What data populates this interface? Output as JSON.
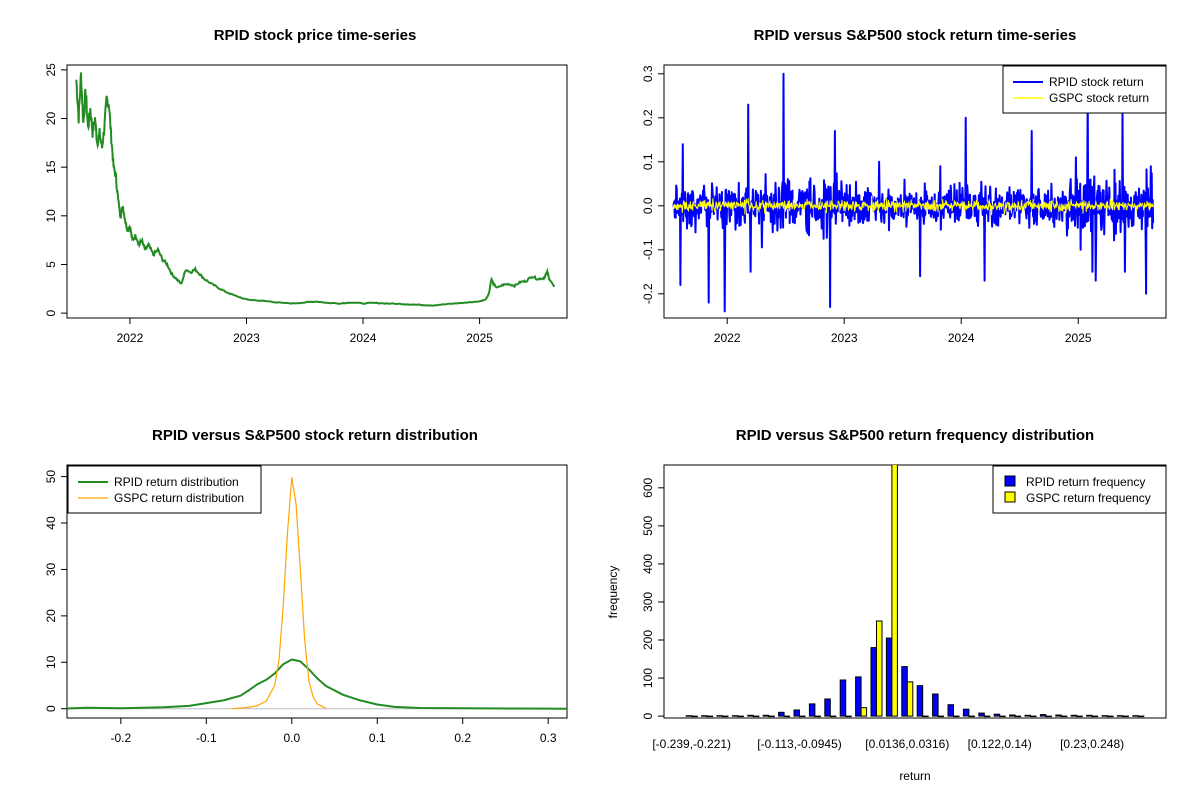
{
  "chart_data": [
    {
      "id": "price",
      "type": "line",
      "title": "RPID stock price time-series",
      "xlabel": "",
      "ylabel": "",
      "xlim": [
        2021.46,
        2025.75
      ],
      "ylim": [
        -0.5,
        25.5
      ],
      "x_ticks": [
        2022,
        2023,
        2024,
        2025
      ],
      "x_tick_labels": [
        "2022",
        "2023",
        "2024",
        "2025"
      ],
      "y_ticks": [
        0,
        5,
        10,
        15,
        20,
        25
      ],
      "y_tick_labels": [
        "0",
        "5",
        "10",
        "15",
        "20",
        "25"
      ],
      "color": "#228B22",
      "series": [
        {
          "name": "RPID",
          "x": [
            2021.54,
            2021.56,
            2021.58,
            2021.6,
            2021.62,
            2021.64,
            2021.66,
            2021.68,
            2021.7,
            2021.72,
            2021.74,
            2021.76,
            2021.78,
            2021.8,
            2021.82,
            2021.84,
            2021.86,
            2021.88,
            2021.9,
            2021.92,
            2021.94,
            2021.96,
            2021.98,
            2022.0,
            2022.02,
            2022.05,
            2022.08,
            2022.1,
            2022.13,
            2022.16,
            2022.2,
            2022.24,
            2022.28,
            2022.32,
            2022.36,
            2022.4,
            2022.44,
            2022.48,
            2022.52,
            2022.56,
            2022.6,
            2022.64,
            2022.7,
            2022.76,
            2022.82,
            2022.9,
            2023.0,
            2023.1,
            2023.2,
            2023.3,
            2023.4,
            2023.5,
            2023.6,
            2023.7,
            2023.8,
            2023.9,
            2024.0,
            2024.1,
            2024.2,
            2024.3,
            2024.4,
            2024.5,
            2024.6,
            2024.7,
            2024.8,
            2024.9,
            2025.0,
            2025.05,
            2025.08,
            2025.1,
            2025.12,
            2025.15,
            2025.2,
            2025.25,
            2025.3,
            2025.35,
            2025.4,
            2025.45,
            2025.5,
            2025.55,
            2025.58,
            2025.6,
            2025.64
          ],
          "values": [
            24,
            20,
            24.5,
            19.5,
            23,
            19,
            21,
            18.5,
            20,
            17.5,
            18.5,
            17,
            19,
            22,
            21.5,
            18,
            15,
            14,
            11.5,
            10,
            11,
            9.5,
            8.5,
            9,
            7.5,
            8,
            7,
            7.5,
            6.5,
            7,
            6,
            6.5,
            5.5,
            5,
            4,
            3.5,
            3,
            4.5,
            4.2,
            4.5,
            4,
            3.5,
            3,
            2.6,
            2.2,
            1.8,
            1.4,
            1.3,
            1.2,
            1.05,
            1.0,
            1.1,
            1.2,
            1.05,
            1.0,
            1.1,
            1.0,
            1.05,
            1.0,
            0.95,
            0.9,
            0.85,
            0.8,
            0.9,
            1.0,
            1.1,
            1.2,
            1.4,
            2.0,
            3.5,
            3.0,
            2.6,
            2.9,
            3.0,
            2.8,
            3.2,
            3.3,
            3.8,
            3.5,
            3.6,
            4.2,
            3.5,
            2.7
          ]
        }
      ]
    },
    {
      "id": "returns",
      "type": "line",
      "title": "RPID versus S&P500 stock return time-series",
      "xlabel": "",
      "ylabel": "",
      "xlim": [
        2021.46,
        2025.75
      ],
      "ylim": [
        -0.255,
        0.32
      ],
      "x_ticks": [
        2022,
        2023,
        2024,
        2025
      ],
      "x_tick_labels": [
        "2022",
        "2023",
        "2024",
        "2025"
      ],
      "y_ticks": [
        -0.2,
        -0.1,
        0.0,
        0.1,
        0.2,
        0.3
      ],
      "y_tick_labels": [
        "-0.2",
        "-0.1",
        "0.0",
        "0.1",
        "0.2",
        "0.3"
      ],
      "legend": {
        "position": "top-right",
        "entries": [
          "RPID stock return",
          "GSPC stock return"
        ]
      },
      "series": [
        {
          "name": "RPID stock return",
          "color": "#0000FF",
          "x_start": 2021.54,
          "x_end": 2025.64,
          "n": 1020,
          "sd": 0.048,
          "spikes": [
            [
              2021.6,
              -0.18
            ],
            [
              2021.62,
              0.14
            ],
            [
              2021.84,
              -0.22
            ],
            [
              2021.98,
              -0.24
            ],
            [
              2022.18,
              0.23
            ],
            [
              2022.2,
              -0.15
            ],
            [
              2022.48,
              0.3
            ],
            [
              2022.88,
              -0.23
            ],
            [
              2022.92,
              0.17
            ],
            [
              2023.3,
              0.1
            ],
            [
              2023.65,
              -0.16
            ],
            [
              2023.82,
              0.09
            ],
            [
              2024.04,
              0.2
            ],
            [
              2024.2,
              -0.17
            ],
            [
              2024.6,
              0.17
            ],
            [
              2024.98,
              0.11
            ],
            [
              2025.02,
              -0.1
            ],
            [
              2025.08,
              0.25
            ],
            [
              2025.12,
              -0.15
            ],
            [
              2025.15,
              -0.17
            ],
            [
              2025.38,
              0.22
            ],
            [
              2025.4,
              -0.15
            ],
            [
              2025.58,
              -0.2
            ],
            [
              2025.62,
              0.09
            ]
          ]
        },
        {
          "name": "GSPC stock return",
          "color": "#FFFF00",
          "x_start": 2021.54,
          "x_end": 2025.64,
          "n": 1020,
          "sd": 0.011,
          "spikes": []
        }
      ]
    },
    {
      "id": "density",
      "type": "line",
      "title": "RPID versus S&P500 stock return distribution",
      "xlabel": "",
      "ylabel": "",
      "xlim": [
        -0.263,
        0.322
      ],
      "ylim": [
        -2,
        52.5
      ],
      "x_ticks": [
        -0.2,
        -0.1,
        0.0,
        0.1,
        0.2,
        0.3
      ],
      "x_tick_labels": [
        "-0.2",
        "-0.1",
        "0.0",
        "0.1",
        "0.2",
        "0.3"
      ],
      "y_ticks": [
        0,
        10,
        20,
        30,
        40,
        50
      ],
      "y_tick_labels": [
        "0",
        "10",
        "20",
        "30",
        "40",
        "50"
      ],
      "legend": {
        "position": "top-left",
        "entries": [
          "RPID return distribution",
          "GSPC return distribution"
        ]
      },
      "series": [
        {
          "name": "RPID return distribution",
          "color": "#228B22",
          "x": [
            -0.263,
            -0.24,
            -0.2,
            -0.15,
            -0.12,
            -0.1,
            -0.08,
            -0.06,
            -0.05,
            -0.04,
            -0.03,
            -0.02,
            -0.01,
            0.0,
            0.01,
            0.02,
            0.03,
            0.04,
            0.06,
            0.08,
            0.1,
            0.12,
            0.15,
            0.2,
            0.25,
            0.3,
            0.322
          ],
          "values": [
            0.05,
            0.2,
            0.1,
            0.3,
            0.6,
            1.2,
            1.8,
            2.8,
            4.0,
            5.3,
            6.2,
            7.6,
            9.6,
            10.6,
            10.2,
            8.5,
            6.5,
            4.9,
            3.0,
            1.8,
            0.9,
            0.4,
            0.15,
            0.1,
            0.05,
            0.02,
            0.0
          ]
        },
        {
          "name": "GSPC return distribution",
          "color": "#FFA500",
          "x": [
            -0.07,
            -0.05,
            -0.04,
            -0.03,
            -0.02,
            -0.015,
            -0.01,
            -0.005,
            0.0,
            0.005,
            0.01,
            0.015,
            0.02,
            0.025,
            0.03,
            0.04
          ],
          "values": [
            0.0,
            0.3,
            0.7,
            1.6,
            5.0,
            10.5,
            22.0,
            38.0,
            49.8,
            44.0,
            30.0,
            15.0,
            6.0,
            2.5,
            1.0,
            0.1
          ]
        }
      ]
    },
    {
      "id": "histogram",
      "type": "bar",
      "title": "RPID versus S&P500 return frequency distribution",
      "xlabel": "return",
      "ylabel": "frequency",
      "ylim": [
        -5,
        660
      ],
      "y_ticks": [
        0,
        100,
        200,
        300,
        400,
        500,
        600
      ],
      "y_tick_labels": [
        "0",
        "100",
        "200",
        "300",
        "400",
        "500",
        "600"
      ],
      "category_labels": [
        "[-0.239,-0.221)",
        "[-0.113,-0.0945)",
        "[0.0136,0.0316)",
        "[0.122,0.14)",
        "[0.23,0.248)"
      ],
      "category_label_index": [
        0,
        7,
        14,
        20,
        26
      ],
      "n_categories": 30,
      "legend": {
        "position": "top-right",
        "entries": [
          "RPID return frequency",
          "GSPC return frequency"
        ]
      },
      "series": [
        {
          "name": "RPID return frequency",
          "color": "#0000FF",
          "values": [
            1,
            1,
            1,
            1,
            2,
            2,
            10,
            16,
            32,
            45,
            95,
            103,
            180,
            205,
            130,
            80,
            58,
            30,
            18,
            8,
            5,
            3,
            2,
            4,
            3,
            2,
            2,
            1,
            1,
            1
          ]
        },
        {
          "name": "GSPC return frequency",
          "color": "#FFFF00",
          "values": [
            0,
            0,
            0,
            0,
            0,
            0,
            0,
            0,
            0,
            0,
            0,
            22,
            250,
            680,
            90,
            0,
            0,
            0,
            0,
            0,
            0,
            0,
            0,
            0,
            0,
            0,
            0,
            0,
            0,
            0
          ]
        }
      ]
    }
  ]
}
